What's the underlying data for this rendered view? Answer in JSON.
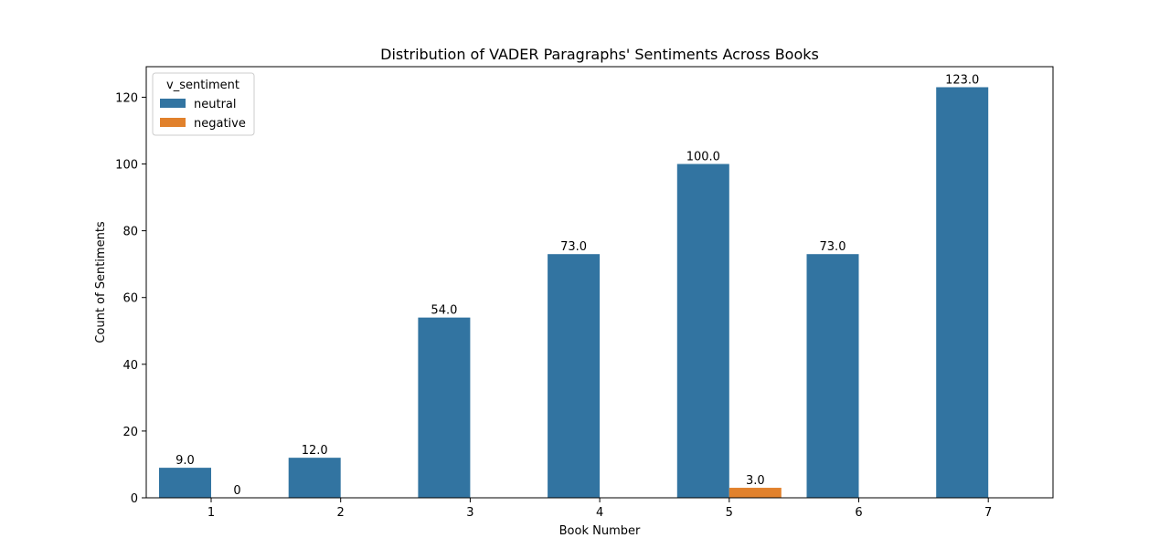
{
  "chart_data": {
    "type": "bar",
    "title": "Distribution of VADER Paragraphs' Sentiments Across Books",
    "xlabel": "Book Number",
    "ylabel": "Count of Sentiments",
    "categories": [
      "1",
      "2",
      "3",
      "4",
      "5",
      "6",
      "7"
    ],
    "series": [
      {
        "name": "neutral",
        "color": "#3274a1",
        "values": [
          9,
          12,
          54,
          73,
          100,
          73,
          123
        ],
        "labels": [
          "9.0",
          "12.0",
          "54.0",
          "73.0",
          "100.0",
          "73.0",
          "123.0"
        ]
      },
      {
        "name": "negative",
        "color": "#e1812c",
        "values": [
          0,
          null,
          null,
          null,
          3,
          null,
          null
        ],
        "labels": [
          "0",
          null,
          null,
          null,
          "3.0",
          null,
          null
        ]
      }
    ],
    "ylim": [
      0,
      129.15
    ],
    "yticks": [
      0,
      20,
      40,
      60,
      80,
      100,
      120
    ],
    "legend": {
      "title": "v_sentiment",
      "position": "top-left"
    },
    "grid": false
  }
}
